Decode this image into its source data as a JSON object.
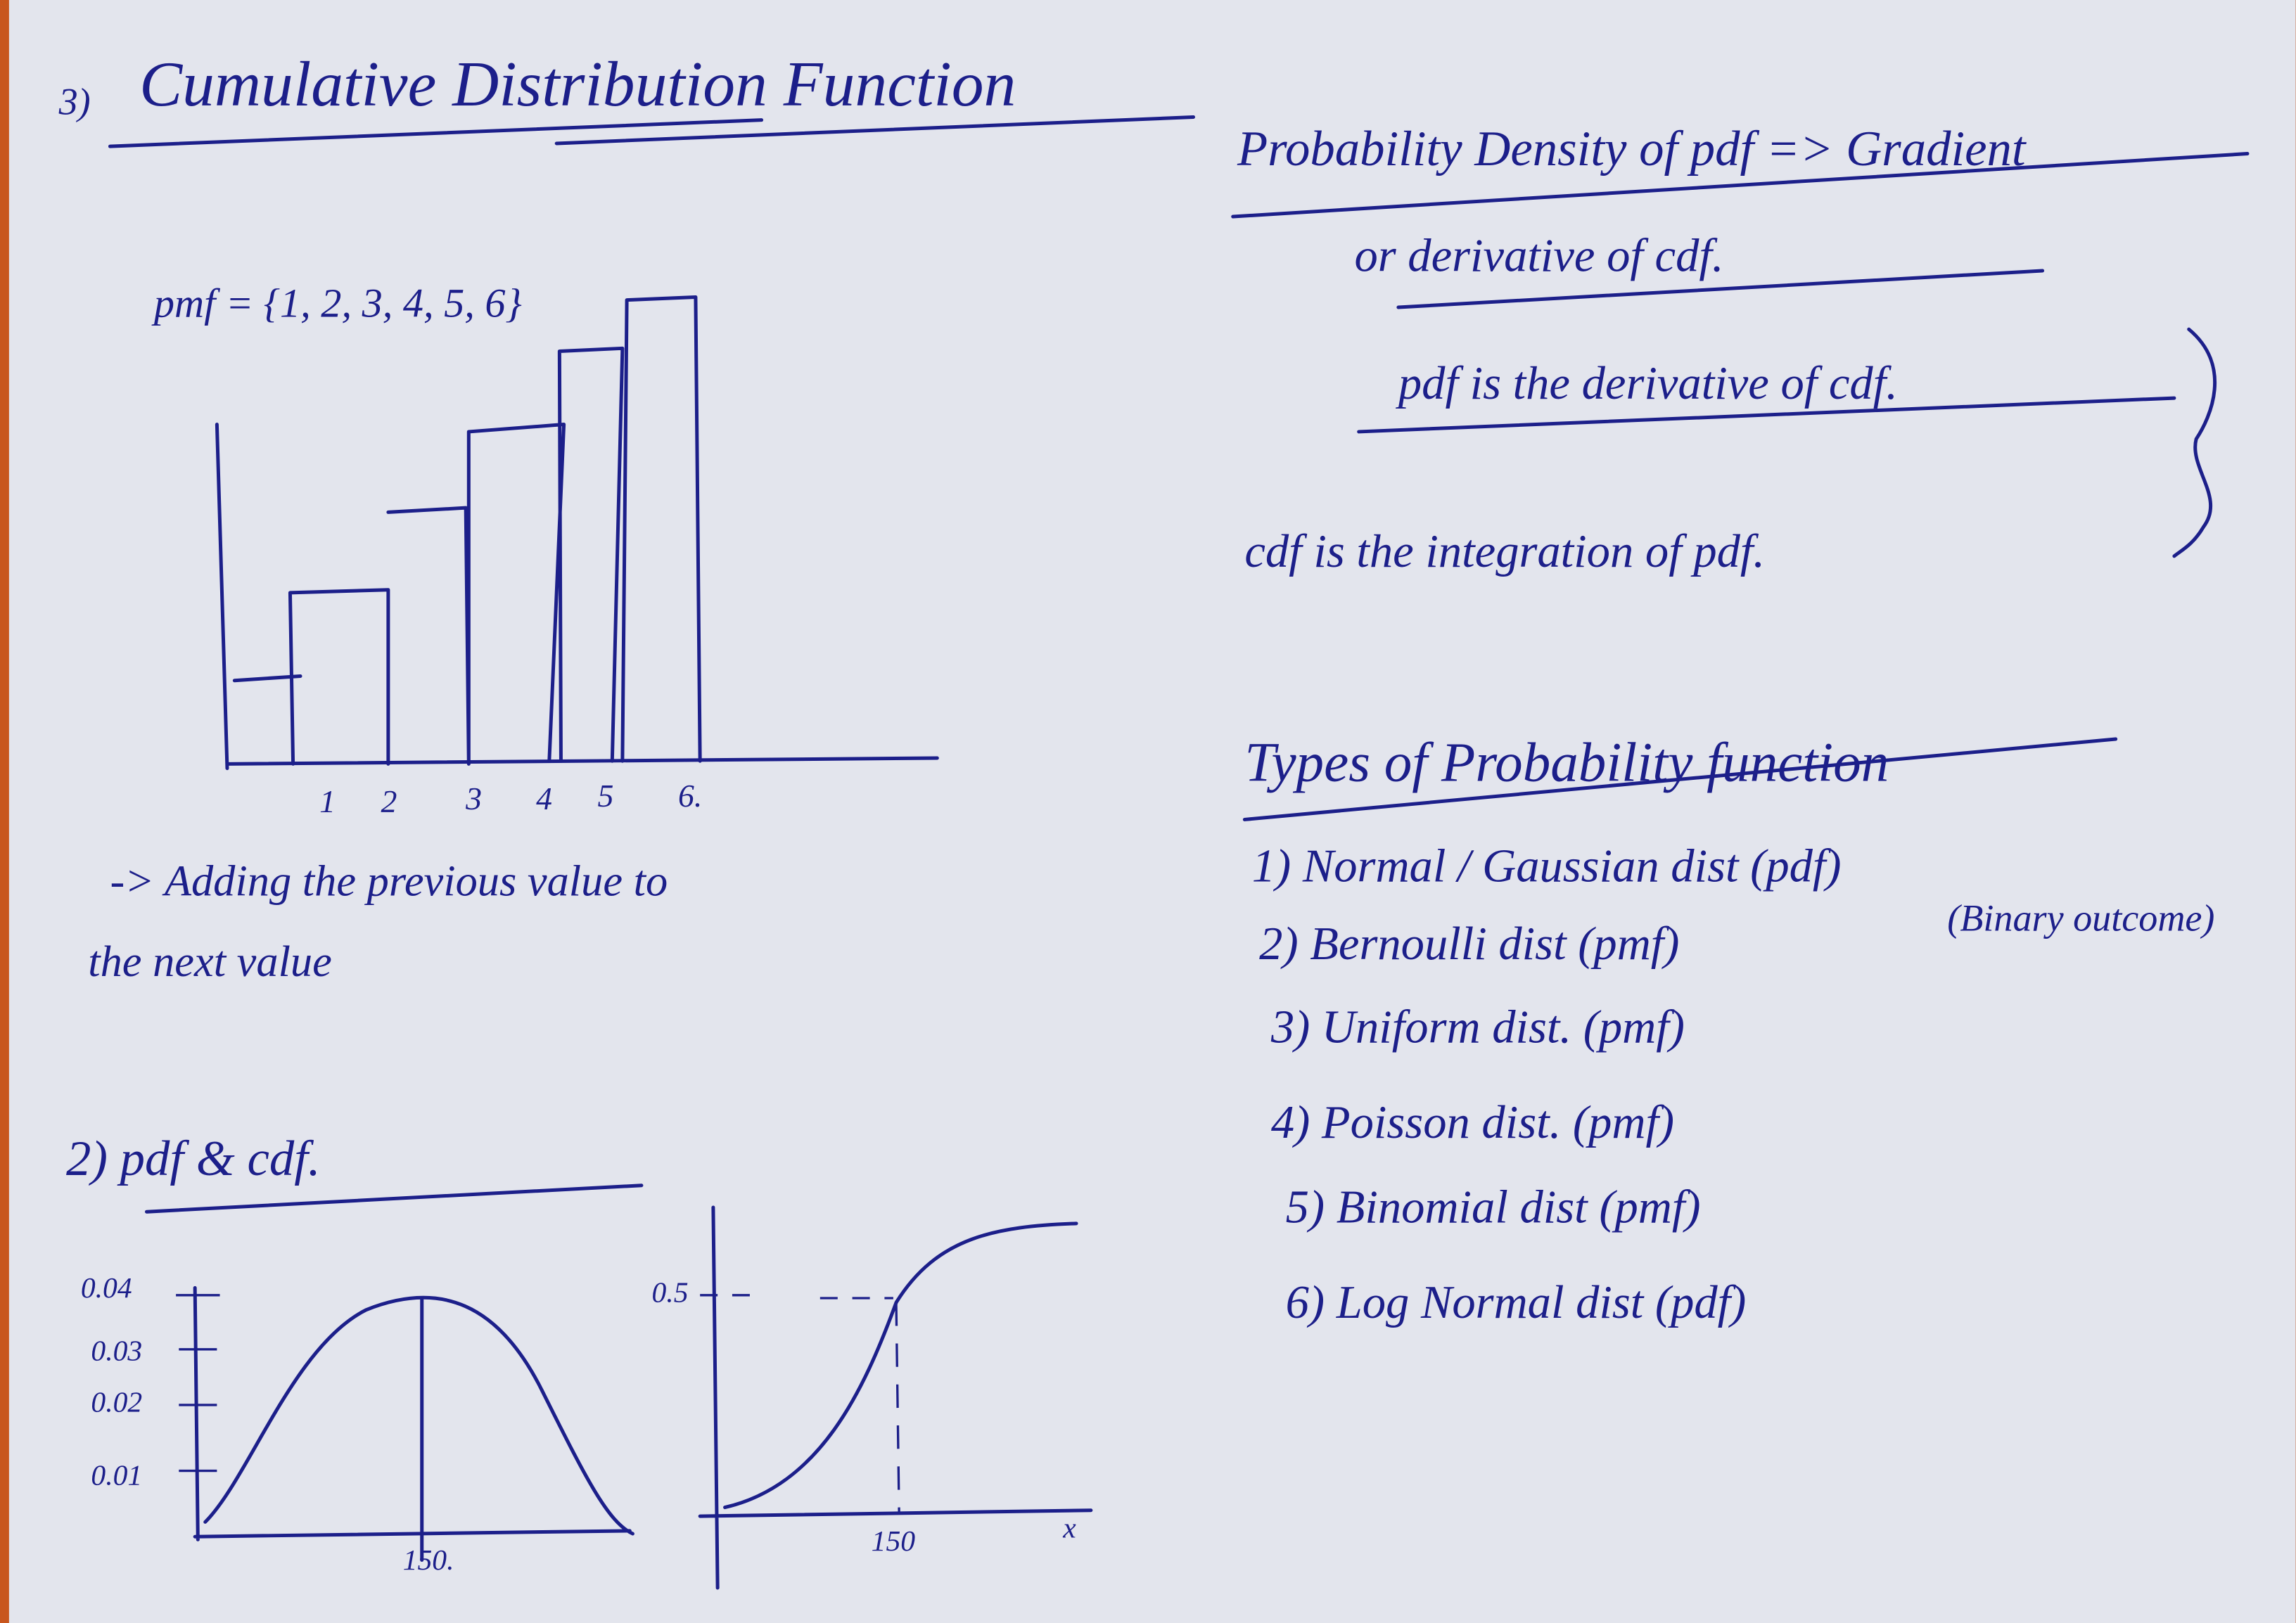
{
  "title": {
    "number": "3)",
    "text": "Cumulative Distribution Function"
  },
  "cdf_sketch": {
    "label": "pmf = {1, 2, 3, 4, 5, 6}",
    "x_labels": [
      "1",
      "2",
      "3",
      "4",
      "5",
      "6."
    ]
  },
  "cdf_note": [
    "-> Adding the previous value to",
    "the next value"
  ],
  "pdf_cdf": {
    "heading": "2) pdf & cdf.",
    "pdf_y_labels": [
      "0.04",
      "0.03",
      "0.02",
      "0.01"
    ],
    "pdf_x_label": "150.",
    "cdf_y_label": "0.5",
    "cdf_x_label": "150",
    "cdf_x_axis": "x"
  },
  "right": {
    "lines": [
      "Probability Density of pdf => Gradient",
      "or derivative of cdf.",
      "pdf is the derivative of cdf.",
      "cdf is the integration of pdf."
    ],
    "types_heading": "Types of Probability function",
    "types": [
      "1) Normal / Gaussian dist (pdf)",
      "2) Bernoulli dist (pmf)",
      "3) Uniform dist. (pmf)",
      "4) Poisson dist. (pmf)",
      "5) Binomial dist (pmf)",
      "6) Log Normal dist (pdf)"
    ],
    "bernoulli_note": "(Binary outcome)"
  }
}
